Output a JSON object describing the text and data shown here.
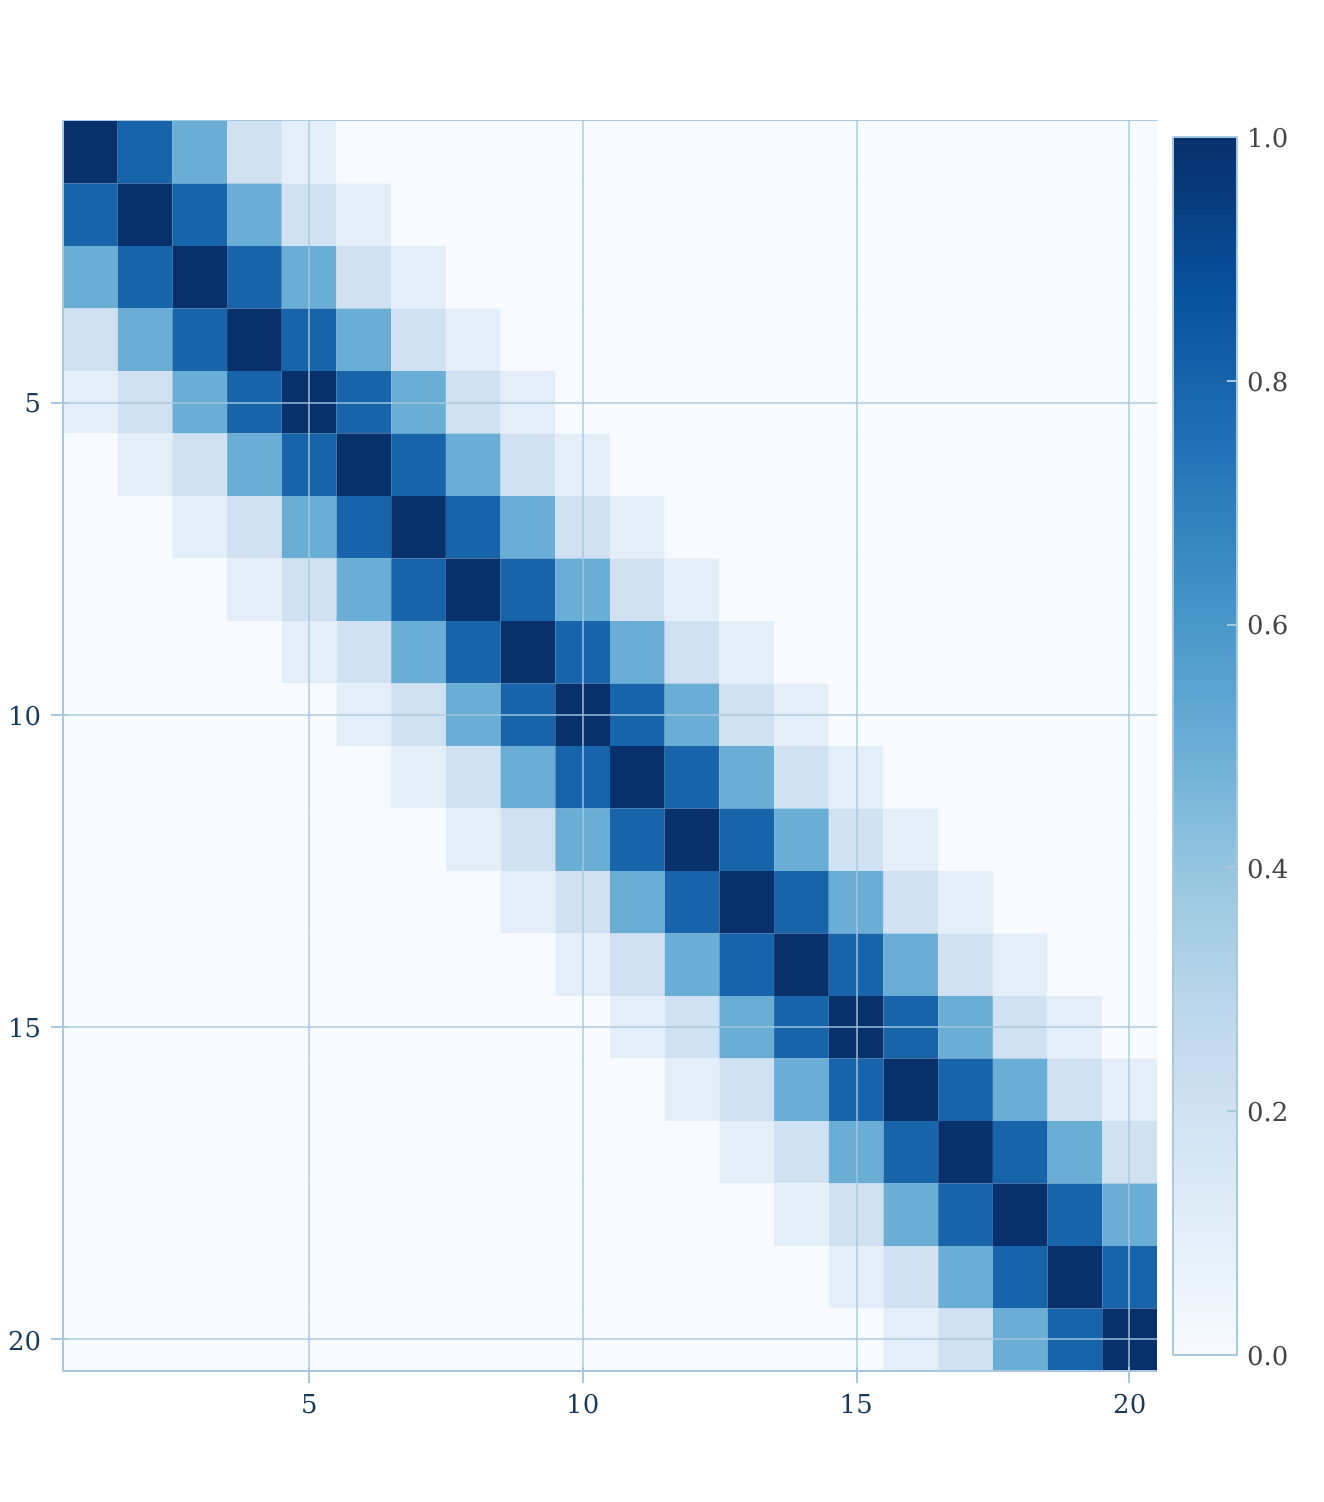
{
  "chart_data": {
    "type": "heatmap",
    "categories": [
      null,
      null,
      null,
      null,
      "5",
      null,
      null,
      null,
      null,
      "10",
      null,
      null,
      null,
      null,
      "15",
      null,
      null,
      null,
      null,
      "20"
    ],
    "y_categories": [
      null,
      null,
      null,
      null,
      "5",
      null,
      null,
      null,
      null,
      "10",
      null,
      null,
      null,
      null,
      "15",
      null,
      null,
      null,
      null,
      "20"
    ],
    "cells": [
      [
        1.0,
        0.8,
        0.5,
        0.2,
        0.1,
        0,
        0,
        0,
        0,
        0,
        0,
        0,
        0,
        0,
        0,
        0,
        0,
        0,
        0,
        0
      ],
      [
        0.8,
        1.0,
        0.8,
        0.5,
        0.2,
        0.1,
        0,
        0,
        0,
        0,
        0,
        0,
        0,
        0,
        0,
        0,
        0,
        0,
        0,
        0
      ],
      [
        0.5,
        0.8,
        1.0,
        0.8,
        0.5,
        0.2,
        0.1,
        0,
        0,
        0,
        0,
        0,
        0,
        0,
        0,
        0,
        0,
        0,
        0,
        0
      ],
      [
        0.2,
        0.5,
        0.8,
        1.0,
        0.8,
        0.5,
        0.2,
        0.1,
        0,
        0,
        0,
        0,
        0,
        0,
        0,
        0,
        0,
        0,
        0,
        0
      ],
      [
        0.1,
        0.2,
        0.5,
        0.8,
        1.0,
        0.8,
        0.5,
        0.2,
        0.1,
        0,
        0,
        0,
        0,
        0,
        0,
        0,
        0,
        0,
        0,
        0
      ],
      [
        0,
        0.1,
        0.2,
        0.5,
        0.8,
        1.0,
        0.8,
        0.5,
        0.2,
        0.1,
        0,
        0,
        0,
        0,
        0,
        0,
        0,
        0,
        0,
        0
      ],
      [
        0,
        0,
        0.1,
        0.2,
        0.5,
        0.8,
        1.0,
        0.8,
        0.5,
        0.2,
        0.1,
        0,
        0,
        0,
        0,
        0,
        0,
        0,
        0,
        0
      ],
      [
        0,
        0,
        0,
        0.1,
        0.2,
        0.5,
        0.8,
        1.0,
        0.8,
        0.5,
        0.2,
        0.1,
        0,
        0,
        0,
        0,
        0,
        0,
        0,
        0
      ],
      [
        0,
        0,
        0,
        0,
        0.1,
        0.2,
        0.5,
        0.8,
        1.0,
        0.8,
        0.5,
        0.2,
        0.1,
        0,
        0,
        0,
        0,
        0,
        0,
        0
      ],
      [
        0,
        0,
        0,
        0,
        0,
        0.1,
        0.2,
        0.5,
        0.8,
        1.0,
        0.8,
        0.5,
        0.2,
        0.1,
        0,
        0,
        0,
        0,
        0,
        0
      ],
      [
        0,
        0,
        0,
        0,
        0,
        0,
        0.1,
        0.2,
        0.5,
        0.8,
        1.0,
        0.8,
        0.5,
        0.2,
        0.1,
        0,
        0,
        0,
        0,
        0
      ],
      [
        0,
        0,
        0,
        0,
        0,
        0,
        0,
        0.1,
        0.2,
        0.5,
        0.8,
        1.0,
        0.8,
        0.5,
        0.2,
        0.1,
        0,
        0,
        0,
        0
      ],
      [
        0,
        0,
        0,
        0,
        0,
        0,
        0,
        0,
        0.1,
        0.2,
        0.5,
        0.8,
        1.0,
        0.8,
        0.5,
        0.2,
        0.1,
        0,
        0,
        0
      ],
      [
        0,
        0,
        0,
        0,
        0,
        0,
        0,
        0,
        0,
        0.1,
        0.2,
        0.5,
        0.8,
        1.0,
        0.8,
        0.5,
        0.2,
        0.1,
        0,
        0
      ],
      [
        0,
        0,
        0,
        0,
        0,
        0,
        0,
        0,
        0,
        0,
        0.1,
        0.2,
        0.5,
        0.8,
        1.0,
        0.8,
        0.5,
        0.2,
        0.1,
        0
      ],
      [
        0,
        0,
        0,
        0,
        0,
        0,
        0,
        0,
        0,
        0,
        0,
        0.1,
        0.2,
        0.5,
        0.8,
        1.0,
        0.8,
        0.5,
        0.2,
        0.1
      ],
      [
        0,
        0,
        0,
        0,
        0,
        0,
        0,
        0,
        0,
        0,
        0,
        0,
        0.1,
        0.2,
        0.5,
        0.8,
        1.0,
        0.8,
        0.5,
        0.2
      ],
      [
        0,
        0,
        0,
        0,
        0,
        0,
        0,
        0,
        0,
        0,
        0,
        0,
        0,
        0.1,
        0.2,
        0.5,
        0.8,
        1.0,
        0.8,
        0.5
      ],
      [
        0,
        0,
        0,
        0,
        0,
        0,
        0,
        0,
        0,
        0,
        0,
        0,
        0,
        0,
        0.1,
        0.2,
        0.5,
        0.8,
        1.0,
        0.8
      ],
      [
        0,
        0,
        0,
        0,
        0,
        0,
        0,
        0,
        0,
        0,
        0,
        0,
        0,
        0,
        0,
        0.1,
        0.2,
        0.5,
        0.8,
        1.0
      ]
    ],
    "clim": [
      0.0,
      1.0
    ],
    "cticks": [
      {
        "value": 0,
        "label": "0.0"
      },
      {
        "value": 0.2,
        "label": "0.2"
      },
      {
        "value": 0.4,
        "label": "0.4"
      },
      {
        "value": 0.6,
        "label": "0.6"
      },
      {
        "value": 0.8,
        "label": "0.8"
      },
      {
        "value": 1,
        "label": "1.0"
      }
    ],
    "grid": true
  }
}
